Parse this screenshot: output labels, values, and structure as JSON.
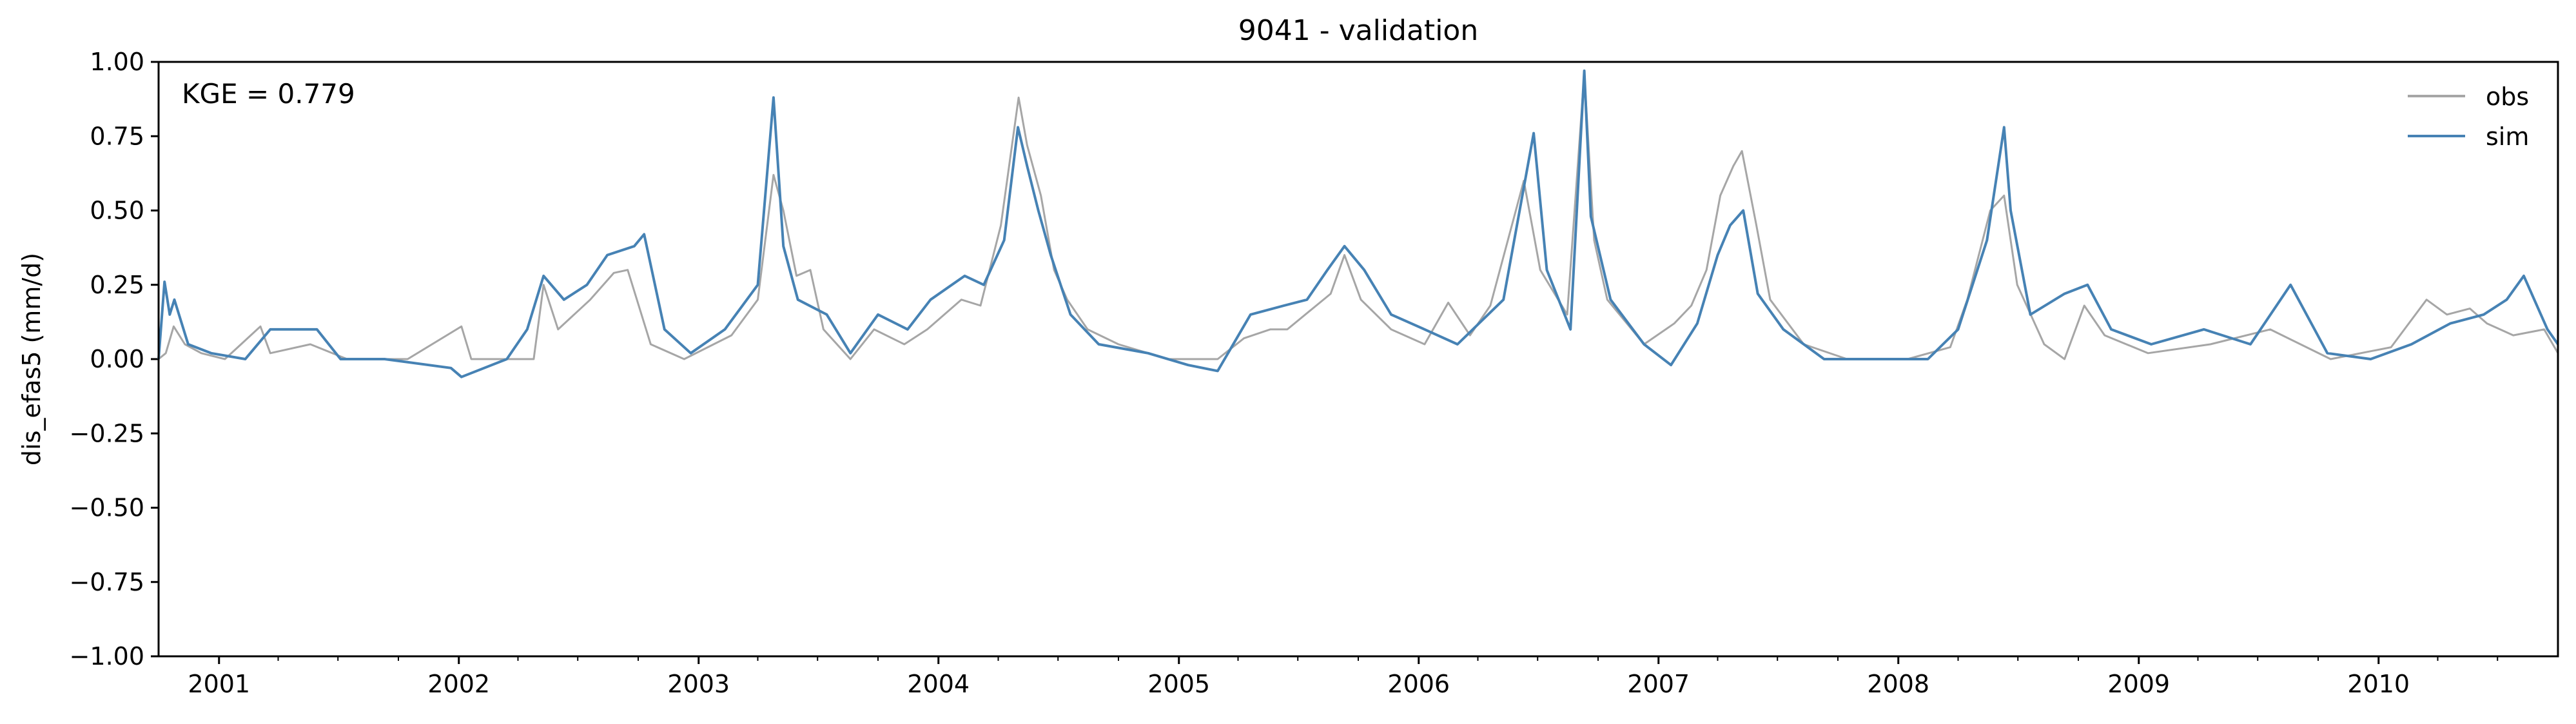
{
  "chart_data": {
    "type": "line",
    "title": "9041 - validation",
    "ylabel": "dis_efas5 (mm/d)",
    "xlabel": "",
    "xlim": [
      "2000-10-01",
      "2010-10-01"
    ],
    "ylim": [
      -1.0,
      1.0
    ],
    "yticks": [
      -1.0,
      -0.75,
      -0.5,
      -0.25,
      0.0,
      0.25,
      0.5,
      0.75,
      1.0
    ],
    "ytick_labels": [
      "−1.00",
      "−0.75",
      "−0.50",
      "−0.25",
      "0.00",
      "0.25",
      "0.50",
      "0.75",
      "1.00"
    ],
    "xticks": [
      "2001-01-01",
      "2002-01-01",
      "2003-01-01",
      "2004-01-01",
      "2005-01-01",
      "2006-01-01",
      "2007-01-01",
      "2008-01-01",
      "2009-01-01",
      "2010-01-01"
    ],
    "xtick_labels": [
      "2001",
      "2002",
      "2003",
      "2004",
      "2005",
      "2006",
      "2007",
      "2008",
      "2009",
      "2010"
    ],
    "grid": false,
    "legend_position": "top-right",
    "annotation": "KGE = 0.779",
    "series": [
      {
        "name": "obs",
        "color": "#a6a6a6",
        "points": [
          [
            "2000-10-01",
            0.0
          ],
          [
            "2000-10-12",
            0.02
          ],
          [
            "2000-10-24",
            0.11
          ],
          [
            "2000-11-10",
            0.05
          ],
          [
            "2000-12-05",
            0.02
          ],
          [
            "2001-01-10",
            0.0
          ],
          [
            "2001-03-05",
            0.11
          ],
          [
            "2001-03-20",
            0.02
          ],
          [
            "2001-05-20",
            0.05
          ],
          [
            "2001-07-15",
            0.0
          ],
          [
            "2001-10-15",
            0.0
          ],
          [
            "2002-01-05",
            0.11
          ],
          [
            "2002-01-20",
            0.0
          ],
          [
            "2002-04-25",
            0.0
          ],
          [
            "2002-05-10",
            0.25
          ],
          [
            "2002-06-01",
            0.1
          ],
          [
            "2002-07-20",
            0.2
          ],
          [
            "2002-08-25",
            0.29
          ],
          [
            "2002-09-15",
            0.3
          ],
          [
            "2002-10-20",
            0.05
          ],
          [
            "2002-12-10",
            0.0
          ],
          [
            "2003-02-20",
            0.08
          ],
          [
            "2003-04-01",
            0.2
          ],
          [
            "2003-04-25",
            0.62
          ],
          [
            "2003-05-10",
            0.5
          ],
          [
            "2003-05-30",
            0.28
          ],
          [
            "2003-06-20",
            0.3
          ],
          [
            "2003-07-10",
            0.1
          ],
          [
            "2003-08-20",
            0.0
          ],
          [
            "2003-09-25",
            0.1
          ],
          [
            "2003-11-10",
            0.05
          ],
          [
            "2003-12-15",
            0.1
          ],
          [
            "2004-02-05",
            0.2
          ],
          [
            "2004-03-05",
            0.18
          ],
          [
            "2004-04-05",
            0.45
          ],
          [
            "2004-05-02",
            0.88
          ],
          [
            "2004-05-15",
            0.72
          ],
          [
            "2004-06-05",
            0.55
          ],
          [
            "2004-06-25",
            0.3
          ],
          [
            "2004-07-15",
            0.2
          ],
          [
            "2004-08-15",
            0.1
          ],
          [
            "2004-10-01",
            0.05
          ],
          [
            "2004-12-15",
            0.0
          ],
          [
            "2005-03-01",
            0.0
          ],
          [
            "2005-04-10",
            0.07
          ],
          [
            "2005-05-20",
            0.1
          ],
          [
            "2005-06-15",
            0.1
          ],
          [
            "2005-08-20",
            0.22
          ],
          [
            "2005-09-10",
            0.35
          ],
          [
            "2005-10-05",
            0.2
          ],
          [
            "2005-11-20",
            0.1
          ],
          [
            "2006-01-10",
            0.05
          ],
          [
            "2006-02-15",
            0.19
          ],
          [
            "2006-03-20",
            0.08
          ],
          [
            "2006-04-20",
            0.18
          ],
          [
            "2006-06-10",
            0.6
          ],
          [
            "2006-07-05",
            0.3
          ],
          [
            "2006-08-15",
            0.15
          ],
          [
            "2006-09-10",
            0.96
          ],
          [
            "2006-09-25",
            0.4
          ],
          [
            "2006-10-15",
            0.2
          ],
          [
            "2006-12-10",
            0.05
          ],
          [
            "2007-01-25",
            0.12
          ],
          [
            "2007-02-20",
            0.18
          ],
          [
            "2007-03-15",
            0.3
          ],
          [
            "2007-04-05",
            0.55
          ],
          [
            "2007-04-25",
            0.65
          ],
          [
            "2007-05-08",
            0.7
          ],
          [
            "2007-05-30",
            0.45
          ],
          [
            "2007-06-20",
            0.2
          ],
          [
            "2007-08-10",
            0.05
          ],
          [
            "2007-10-15",
            0.0
          ],
          [
            "2008-01-15",
            0.0
          ],
          [
            "2008-03-20",
            0.04
          ],
          [
            "2008-04-15",
            0.2
          ],
          [
            "2008-05-20",
            0.5
          ],
          [
            "2008-06-10",
            0.55
          ],
          [
            "2008-06-30",
            0.25
          ],
          [
            "2008-08-10",
            0.05
          ],
          [
            "2008-09-10",
            0.0
          ],
          [
            "2008-10-10",
            0.18
          ],
          [
            "2008-11-10",
            0.08
          ],
          [
            "2009-01-15",
            0.02
          ],
          [
            "2009-04-20",
            0.05
          ],
          [
            "2009-07-20",
            0.1
          ],
          [
            "2009-10-20",
            0.0
          ],
          [
            "2010-01-20",
            0.04
          ],
          [
            "2010-03-15",
            0.2
          ],
          [
            "2010-04-15",
            0.15
          ],
          [
            "2010-05-20",
            0.17
          ],
          [
            "2010-06-15",
            0.12
          ],
          [
            "2010-07-25",
            0.08
          ],
          [
            "2010-09-10",
            0.1
          ],
          [
            "2010-10-01",
            0.02
          ]
        ]
      },
      {
        "name": "sim",
        "color": "#4682b4",
        "points": [
          [
            "2000-10-01",
            0.0
          ],
          [
            "2000-10-10",
            0.26
          ],
          [
            "2000-10-18",
            0.15
          ],
          [
            "2000-10-25",
            0.2
          ],
          [
            "2000-11-15",
            0.05
          ],
          [
            "2000-12-20",
            0.02
          ],
          [
            "2001-02-10",
            0.0
          ],
          [
            "2001-03-20",
            0.1
          ],
          [
            "2001-05-30",
            0.1
          ],
          [
            "2001-07-05",
            0.0
          ],
          [
            "2001-09-10",
            0.0
          ],
          [
            "2001-12-20",
            -0.03
          ],
          [
            "2002-01-05",
            -0.06
          ],
          [
            "2002-03-15",
            0.0
          ],
          [
            "2002-04-15",
            0.1
          ],
          [
            "2002-05-10",
            0.28
          ],
          [
            "2002-06-10",
            0.2
          ],
          [
            "2002-07-15",
            0.25
          ],
          [
            "2002-08-15",
            0.35
          ],
          [
            "2002-09-25",
            0.38
          ],
          [
            "2002-10-10",
            0.42
          ],
          [
            "2002-11-10",
            0.1
          ],
          [
            "2002-12-20",
            0.02
          ],
          [
            "2003-02-10",
            0.1
          ],
          [
            "2003-04-01",
            0.25
          ],
          [
            "2003-04-25",
            0.88
          ],
          [
            "2003-05-10",
            0.38
          ],
          [
            "2003-06-01",
            0.2
          ],
          [
            "2003-07-15",
            0.15
          ],
          [
            "2003-08-20",
            0.02
          ],
          [
            "2003-10-01",
            0.15
          ],
          [
            "2003-11-15",
            0.1
          ],
          [
            "2003-12-20",
            0.2
          ],
          [
            "2004-02-10",
            0.28
          ],
          [
            "2004-03-10",
            0.25
          ],
          [
            "2004-04-10",
            0.4
          ],
          [
            "2004-05-01",
            0.78
          ],
          [
            "2004-05-15",
            0.65
          ],
          [
            "2004-06-01",
            0.5
          ],
          [
            "2004-06-20",
            0.35
          ],
          [
            "2004-07-20",
            0.15
          ],
          [
            "2004-09-01",
            0.05
          ],
          [
            "2004-11-15",
            0.02
          ],
          [
            "2005-01-15",
            -0.02
          ],
          [
            "2005-03-01",
            -0.04
          ],
          [
            "2005-04-20",
            0.15
          ],
          [
            "2005-06-10",
            0.18
          ],
          [
            "2005-07-15",
            0.2
          ],
          [
            "2005-08-15",
            0.3
          ],
          [
            "2005-09-10",
            0.38
          ],
          [
            "2005-10-10",
            0.3
          ],
          [
            "2005-11-20",
            0.15
          ],
          [
            "2006-01-10",
            0.1
          ],
          [
            "2006-03-01",
            0.05
          ],
          [
            "2006-05-10",
            0.2
          ],
          [
            "2006-06-25",
            0.76
          ],
          [
            "2006-07-15",
            0.3
          ],
          [
            "2006-08-20",
            0.1
          ],
          [
            "2006-09-10",
            0.97
          ],
          [
            "2006-09-20",
            0.48
          ],
          [
            "2006-10-20",
            0.2
          ],
          [
            "2006-12-10",
            0.05
          ],
          [
            "2007-01-20",
            -0.02
          ],
          [
            "2007-03-01",
            0.12
          ],
          [
            "2007-04-01",
            0.35
          ],
          [
            "2007-04-20",
            0.45
          ],
          [
            "2007-05-10",
            0.5
          ],
          [
            "2007-06-01",
            0.22
          ],
          [
            "2007-07-10",
            0.1
          ],
          [
            "2007-09-10",
            0.0
          ],
          [
            "2007-12-20",
            0.0
          ],
          [
            "2008-02-15",
            0.0
          ],
          [
            "2008-04-01",
            0.1
          ],
          [
            "2008-05-15",
            0.4
          ],
          [
            "2008-06-10",
            0.78
          ],
          [
            "2008-06-20",
            0.5
          ],
          [
            "2008-07-20",
            0.15
          ],
          [
            "2008-09-10",
            0.22
          ],
          [
            "2008-10-15",
            0.25
          ],
          [
            "2008-11-20",
            0.1
          ],
          [
            "2009-01-20",
            0.05
          ],
          [
            "2009-04-10",
            0.1
          ],
          [
            "2009-06-20",
            0.05
          ],
          [
            "2009-08-20",
            0.25
          ],
          [
            "2009-10-15",
            0.02
          ],
          [
            "2009-12-20",
            0.0
          ],
          [
            "2010-02-20",
            0.05
          ],
          [
            "2010-04-20",
            0.12
          ],
          [
            "2010-06-10",
            0.15
          ],
          [
            "2010-07-15",
            0.2
          ],
          [
            "2010-08-10",
            0.28
          ],
          [
            "2010-09-15",
            0.1
          ],
          [
            "2010-10-01",
            0.05
          ]
        ]
      }
    ]
  }
}
